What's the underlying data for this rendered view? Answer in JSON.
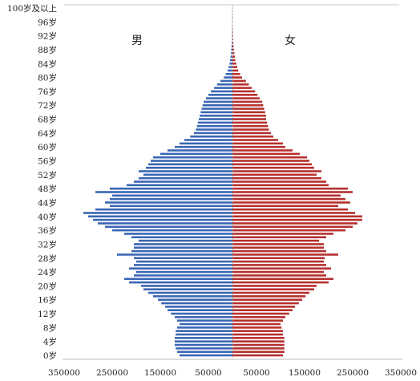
{
  "chart_data": {
    "type": "bar",
    "orientation": "horizontal",
    "layout": "population-pyramid",
    "grid": false,
    "legend": "none",
    "age_tick_labels": [
      "0岁",
      "4岁",
      "8岁",
      "12岁",
      "16岁",
      "20岁",
      "24岁",
      "28岁",
      "32岁",
      "36岁",
      "40岁",
      "44岁",
      "48岁",
      "52岁",
      "56岁",
      "60岁",
      "64岁",
      "68岁",
      "72岁",
      "76岁",
      "80岁",
      "84岁",
      "88岁",
      "92岁",
      "96岁",
      "100岁及以上"
    ],
    "x_tick_labels": [
      "350000",
      "250000",
      "150000",
      "50000",
      "50000",
      "150000",
      "250000",
      "350000"
    ],
    "x_range": [
      -350000,
      350000
    ],
    "ages": [
      0,
      1,
      2,
      3,
      4,
      5,
      6,
      7,
      8,
      9,
      10,
      11,
      12,
      13,
      14,
      15,
      16,
      17,
      18,
      19,
      20,
      21,
      22,
      23,
      24,
      25,
      26,
      27,
      28,
      29,
      30,
      31,
      32,
      33,
      34,
      35,
      36,
      37,
      38,
      39,
      40,
      41,
      42,
      43,
      44,
      45,
      46,
      47,
      48,
      49,
      50,
      51,
      52,
      53,
      54,
      55,
      56,
      57,
      58,
      59,
      60,
      61,
      62,
      63,
      64,
      65,
      66,
      67,
      68,
      69,
      70,
      71,
      72,
      73,
      74,
      75,
      76,
      77,
      78,
      79,
      80,
      81,
      82,
      83,
      84,
      85,
      86,
      87,
      88,
      89,
      90,
      91,
      92,
      93,
      94,
      95,
      96,
      97,
      98,
      99,
      100
    ],
    "series": [
      {
        "name": "男",
        "color": "#3a66b4",
        "values": [
          110000,
          115000,
          118000,
          120000,
          120000,
          120000,
          118000,
          118000,
          115000,
          110000,
          115000,
          120000,
          128000,
          135000,
          140000,
          148000,
          155000,
          165000,
          175000,
          185000,
          190000,
          215000,
          225000,
          205000,
          200000,
          215000,
          205000,
          200000,
          205000,
          240000,
          210000,
          205000,
          205000,
          195000,
          210000,
          225000,
          250000,
          265000,
          280000,
          290000,
          300000,
          310000,
          285000,
          255000,
          265000,
          255000,
          250000,
          285000,
          255000,
          220000,
          205000,
          195000,
          185000,
          195000,
          180000,
          175000,
          170000,
          165000,
          150000,
          135000,
          120000,
          110000,
          100000,
          88000,
          80000,
          76000,
          74000,
          72000,
          70000,
          68000,
          66000,
          64000,
          62000,
          60000,
          55000,
          50000,
          45000,
          38000,
          32000,
          25000,
          18000,
          14000,
          10000,
          8000,
          6000,
          5000,
          4000,
          3000,
          2500,
          2000,
          1500,
          1200,
          1000,
          800,
          600,
          500,
          400,
          300,
          250,
          200,
          300
        ]
      },
      {
        "name": "女",
        "color": "#b5302e",
        "values": [
          105000,
          108000,
          108000,
          108000,
          108000,
          108000,
          105000,
          105000,
          102000,
          100000,
          105000,
          110000,
          118000,
          125000,
          130000,
          138000,
          145000,
          152000,
          160000,
          170000,
          175000,
          200000,
          210000,
          195000,
          190000,
          205000,
          195000,
          190000,
          192000,
          220000,
          195000,
          190000,
          190000,
          180000,
          195000,
          210000,
          235000,
          250000,
          260000,
          270000,
          270000,
          255000,
          240000,
          220000,
          245000,
          235000,
          225000,
          250000,
          240000,
          200000,
          195000,
          185000,
          175000,
          185000,
          170000,
          165000,
          160000,
          155000,
          140000,
          125000,
          110000,
          105000,
          95000,
          85000,
          80000,
          76000,
          74000,
          72000,
          70000,
          70000,
          68000,
          66000,
          64000,
          62000,
          57000,
          52000,
          47000,
          40000,
          34000,
          28000,
          20000,
          16000,
          12000,
          10000,
          8000,
          6000,
          5000,
          4000,
          3000,
          2500,
          2000,
          1500,
          1200,
          1000,
          800,
          600,
          500,
          400,
          300,
          200,
          300
        ]
      }
    ]
  }
}
